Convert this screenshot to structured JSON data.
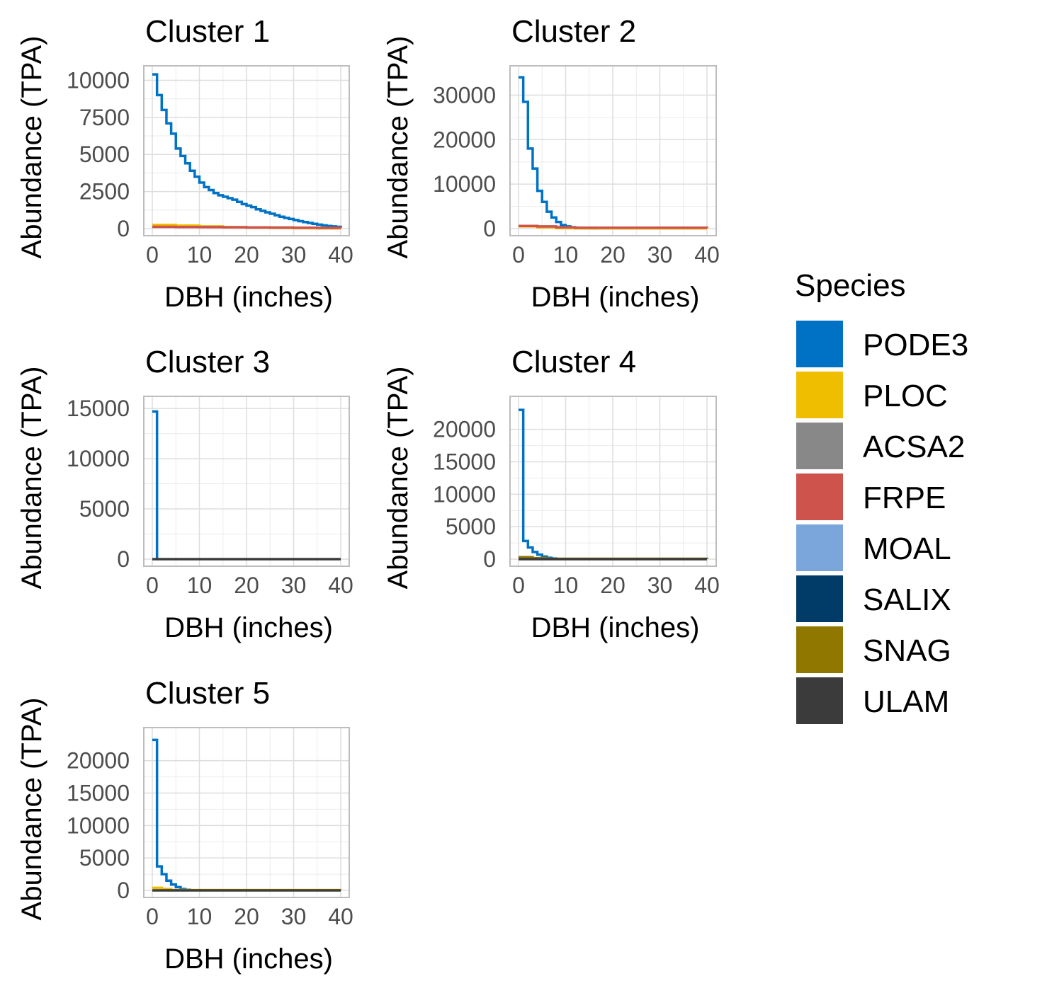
{
  "legend": {
    "title": "Species",
    "items": [
      {
        "label": "PODE3",
        "color": "#0072C6"
      },
      {
        "label": "PLOC",
        "color": "#F0BE00"
      },
      {
        "label": "ACSA2",
        "color": "#888888"
      },
      {
        "label": "FRPE",
        "color": "#CD534C"
      },
      {
        "label": "MOAL",
        "color": "#7AA6DC"
      },
      {
        "label": "SALIX",
        "color": "#003C67"
      },
      {
        "label": "SNAG",
        "color": "#8F7700"
      },
      {
        "label": "ULAM",
        "color": "#3B3B3B"
      }
    ]
  },
  "chart_data": [
    {
      "type": "line",
      "step": true,
      "title": "Cluster 1",
      "xlabel": "DBH (inches)",
      "ylabel": "Abundance (TPA)",
      "xlim": [
        0,
        40
      ],
      "ylim": [
        0,
        10500
      ],
      "x_ticks": [
        0,
        10,
        20,
        30,
        40
      ],
      "y_ticks": [
        0,
        2500,
        5000,
        7500,
        10000
      ],
      "series": [
        {
          "name": "PODE3",
          "x": [
            0,
            1,
            2,
            3,
            4,
            5,
            6,
            7,
            8,
            9,
            10,
            11,
            12,
            13,
            14,
            15,
            16,
            17,
            18,
            19,
            20,
            21,
            22,
            23,
            24,
            25,
            26,
            27,
            28,
            29,
            30,
            31,
            32,
            33,
            34,
            35,
            36,
            37,
            38,
            39,
            40
          ],
          "y": [
            10400,
            9000,
            8000,
            7100,
            6400,
            5400,
            4900,
            4400,
            3900,
            3500,
            3100,
            2800,
            2600,
            2400,
            2250,
            2150,
            2050,
            1950,
            1800,
            1650,
            1550,
            1450,
            1300,
            1200,
            1100,
            1000,
            900,
            800,
            720,
            650,
            580,
            500,
            440,
            380,
            320,
            270,
            220,
            180,
            150,
            120,
            100
          ]
        },
        {
          "name": "PLOC",
          "x": [
            0,
            5,
            10,
            15,
            20,
            25,
            30,
            35,
            40
          ],
          "y": [
            250,
            200,
            150,
            100,
            70,
            50,
            30,
            20,
            10
          ]
        },
        {
          "name": "FRPE",
          "x": [
            0,
            5,
            10,
            15,
            20,
            25,
            30,
            35,
            40
          ],
          "y": [
            120,
            110,
            100,
            90,
            80,
            70,
            60,
            50,
            40
          ]
        }
      ]
    },
    {
      "type": "line",
      "step": true,
      "title": "Cluster 2",
      "xlabel": "DBH (inches)",
      "ylabel": "Abundance (TPA)",
      "xlim": [
        0,
        40
      ],
      "ylim": [
        0,
        35000
      ],
      "x_ticks": [
        0,
        10,
        20,
        30,
        40
      ],
      "y_ticks": [
        0,
        10000,
        20000,
        30000
      ],
      "series": [
        {
          "name": "PODE3",
          "x": [
            0,
            1,
            2,
            3,
            4,
            5,
            6,
            7,
            8,
            9,
            10,
            11,
            12,
            13,
            14,
            15,
            16,
            17
          ],
          "y": [
            34000,
            28500,
            18000,
            13500,
            8500,
            6000,
            3800,
            2500,
            1500,
            800,
            500,
            300,
            200,
            150,
            100,
            80,
            60,
            40
          ]
        },
        {
          "name": "PLOC",
          "x": [
            0,
            4,
            8,
            12,
            40
          ],
          "y": [
            500,
            300,
            100,
            50,
            20
          ]
        },
        {
          "name": "FRPE",
          "x": [
            0,
            4,
            8,
            12,
            40
          ],
          "y": [
            600,
            500,
            300,
            200,
            100
          ]
        }
      ]
    },
    {
      "type": "line",
      "step": true,
      "title": "Cluster 3",
      "xlabel": "DBH (inches)",
      "ylabel": "Abundance (TPA)",
      "xlim": [
        0,
        40
      ],
      "ylim": [
        0,
        15500
      ],
      "x_ticks": [
        0,
        10,
        20,
        30,
        40
      ],
      "y_ticks": [
        0,
        5000,
        10000,
        15000
      ],
      "series": [
        {
          "name": "PODE3",
          "x": [
            0,
            1
          ],
          "y": [
            14700,
            0
          ]
        },
        {
          "name": "ULAM",
          "x": [
            0,
            40
          ],
          "y": [
            0,
            0
          ]
        }
      ]
    },
    {
      "type": "line",
      "step": true,
      "title": "Cluster 4",
      "xlabel": "DBH (inches)",
      "ylabel": "Abundance (TPA)",
      "xlim": [
        0,
        40
      ],
      "ylim": [
        0,
        24000
      ],
      "x_ticks": [
        0,
        10,
        20,
        30,
        40
      ],
      "y_ticks": [
        0,
        5000,
        10000,
        15000,
        20000
      ],
      "series": [
        {
          "name": "PODE3",
          "x": [
            0,
            1,
            2,
            3,
            4,
            5,
            6,
            7,
            8
          ],
          "y": [
            23000,
            2800,
            1800,
            1100,
            700,
            400,
            200,
            100,
            0
          ]
        },
        {
          "name": "SNAG",
          "x": [
            0,
            3,
            6,
            40
          ],
          "y": [
            300,
            150,
            50,
            0
          ]
        },
        {
          "name": "ULAM",
          "x": [
            0,
            40
          ],
          "y": [
            0,
            0
          ]
        }
      ]
    },
    {
      "type": "line",
      "step": true,
      "title": "Cluster 5",
      "xlabel": "DBH (inches)",
      "ylabel": "Abundance (TPA)",
      "xlim": [
        0,
        40
      ],
      "ylim": [
        0,
        24000
      ],
      "x_ticks": [
        0,
        10,
        20,
        30,
        40
      ],
      "y_ticks": [
        0,
        5000,
        10000,
        15000,
        20000
      ],
      "series": [
        {
          "name": "PODE3",
          "x": [
            0,
            1,
            2,
            3,
            4,
            5,
            6,
            7,
            8
          ],
          "y": [
            23200,
            3700,
            2500,
            1500,
            900,
            500,
            200,
            100,
            0
          ]
        },
        {
          "name": "PLOC",
          "x": [
            0,
            2,
            4,
            40
          ],
          "y": [
            400,
            200,
            50,
            0
          ]
        },
        {
          "name": "ULAM",
          "x": [
            0,
            40
          ],
          "y": [
            0,
            0
          ]
        }
      ]
    }
  ]
}
